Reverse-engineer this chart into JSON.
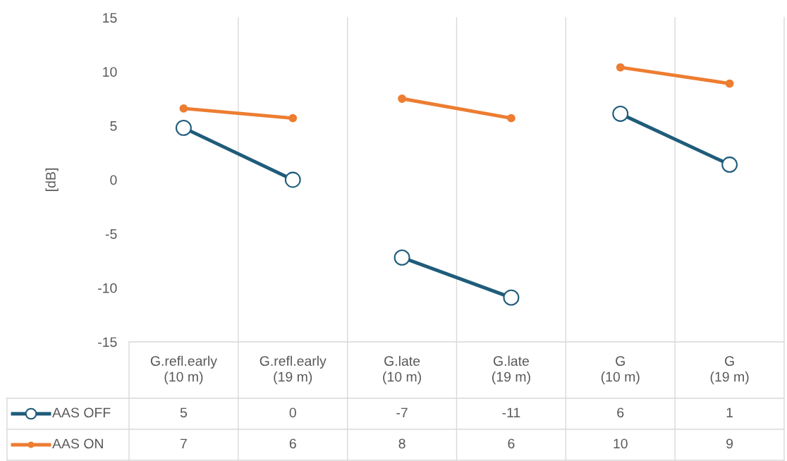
{
  "chart_data": {
    "type": "line",
    "ylabel": "[dB]",
    "categories": [
      "G.refl.early\n(10 m)",
      "G.refl.early\n(19 m)",
      "G.late\n(10 m)",
      "G.late\n(19 m)",
      "G\n(10 m)",
      "G\n(19 m)"
    ],
    "series": [
      {
        "name": "AAS OFF",
        "color": "#1f5c7a",
        "marker": "circle",
        "values": [
          4.8,
          0.0,
          -7.2,
          -10.9,
          6.1,
          1.4
        ],
        "value_labels": [
          "5",
          "0",
          "-7",
          "-11",
          "6",
          "1"
        ]
      },
      {
        "name": "AAS ON",
        "color": "#ed7d31",
        "marker": "circle",
        "values": [
          6.6,
          5.7,
          7.5,
          5.7,
          10.4,
          8.9
        ],
        "value_labels": [
          "7",
          "6",
          "8",
          "6",
          "10",
          "9"
        ]
      }
    ],
    "ylim": [
      -15,
      15
    ],
    "yticks": [
      -15,
      -10,
      -5,
      0,
      5,
      10,
      15
    ],
    "grid": false,
    "legend": "bottom",
    "line_style": "solid"
  }
}
